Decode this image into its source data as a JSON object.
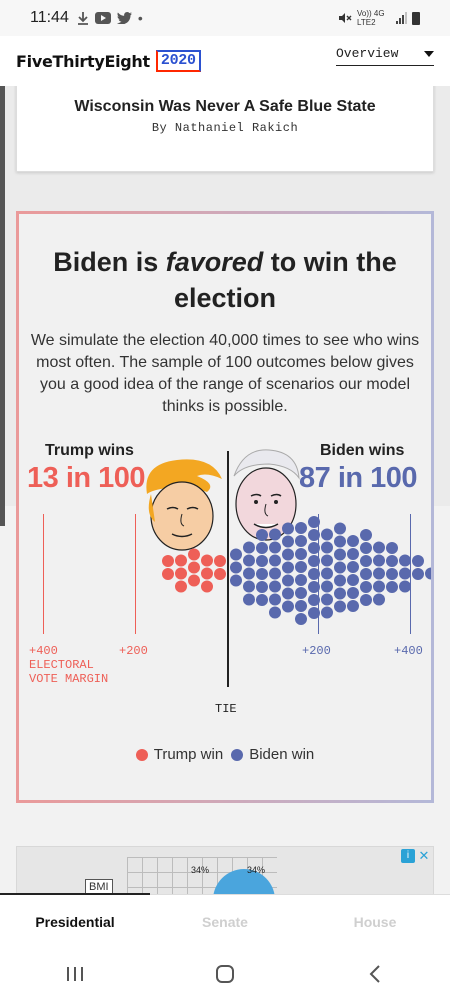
{
  "status_bar": {
    "time": "11:44",
    "network": "Vo)) 4G LTE2"
  },
  "header": {
    "logo_text": "FiveThirtyEight",
    "logo_year": "2020",
    "section_dropdown": "Overview"
  },
  "article_card": {
    "title": "Wisconsin Was Never A Safe Blue State",
    "byline": "By Nathaniel Rakich"
  },
  "forecast": {
    "title_pre": "Biden is ",
    "title_em": "favored",
    "title_post": " to win the election",
    "description": "We simulate the election 40,000 times to see who wins most often. The sample of 100 outcomes below gives you a good idea of the range of scenarios our model thinks is possible.",
    "trump_label": "Trump wins",
    "trump_odds": "13 in 100",
    "biden_label": "Biden wins",
    "biden_odds": "87 in 100",
    "axis": {
      "left_400": "+400",
      "left_200": "+200",
      "axis_title": "ELECTORAL VOTE MARGIN",
      "tie": "TIE",
      "right_200": "+200",
      "right_400": "+400"
    },
    "legend": {
      "trump": "Trump win",
      "biden": "Biden win"
    },
    "colors": {
      "trump": "#ee5f57",
      "biden": "#5969ad"
    },
    "outcomes": {
      "trump_wins": 13,
      "biden_wins": 87,
      "total": 100
    }
  },
  "ad": {
    "pct_left": "34%",
    "pct_right": "34%",
    "label": "BMI",
    "info_icon": "info-icon",
    "close_icon": "close-icon"
  },
  "tabs": [
    {
      "label": "Presidential",
      "active": true
    },
    {
      "label": "Senate",
      "active": false
    },
    {
      "label": "House",
      "active": false
    }
  ],
  "nav": [
    "recent-apps-icon",
    "home-icon",
    "back-icon"
  ]
}
